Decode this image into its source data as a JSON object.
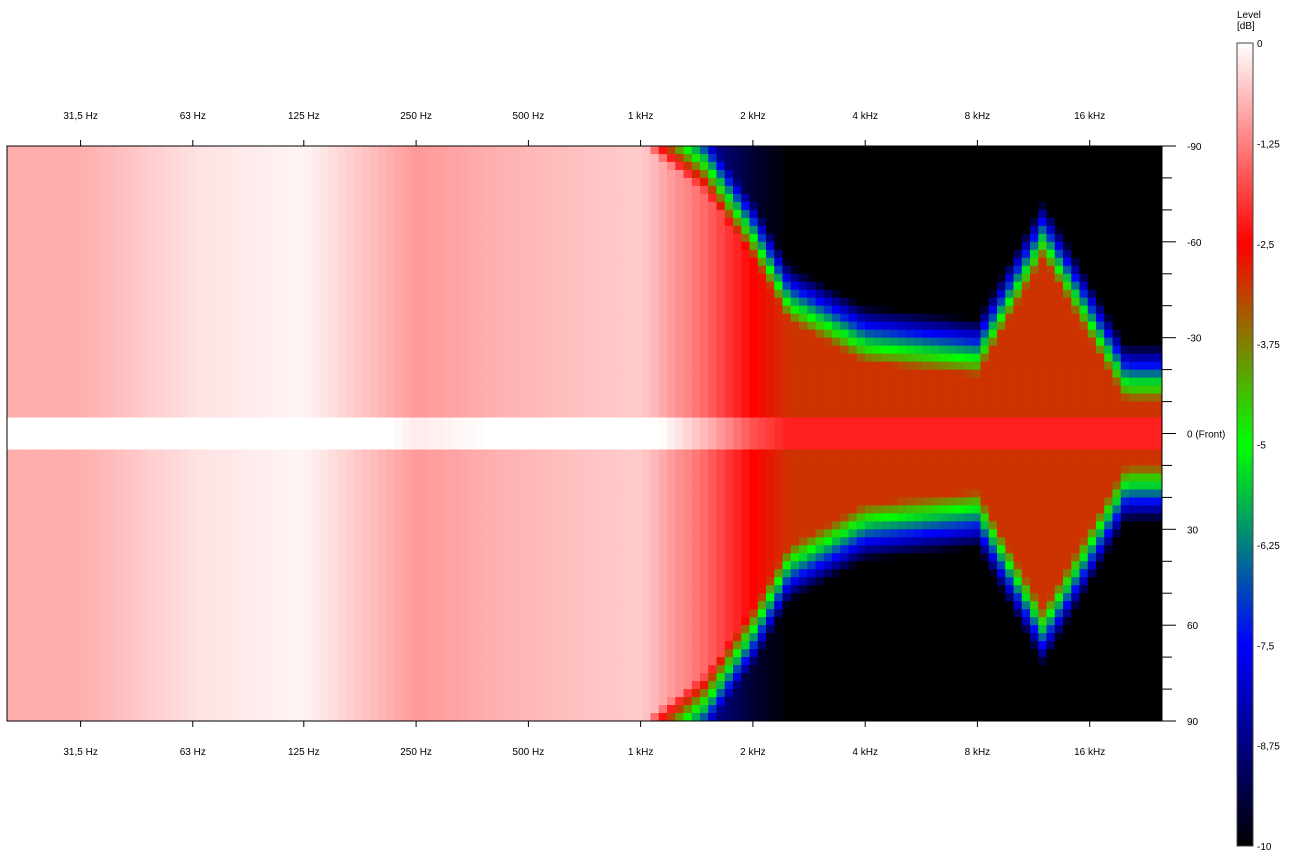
{
  "chart_data": {
    "type": "heatmap",
    "x_scale": "log",
    "x_tick_labels": [
      "31,5 Hz",
      "63 Hz",
      "125 Hz",
      "250 Hz",
      "500 Hz",
      "1 kHz",
      "2 kHz",
      "4 kHz",
      "8 kHz",
      "16 kHz"
    ],
    "x_tick_values_hz": [
      31.5,
      63,
      125,
      250,
      500,
      1000,
      2000,
      4000,
      8000,
      16000
    ],
    "xlim_hz": [
      20,
      25000
    ],
    "y_tick_labels": [
      "-90",
      "-60",
      "-30",
      "0 (Front)",
      "30",
      "60",
      "90"
    ],
    "y_tick_values_deg": [
      -90,
      -60,
      -30,
      0,
      30,
      60,
      90
    ],
    "ylim_deg": [
      -90,
      90
    ],
    "colorbar": {
      "title": "Level\n[dB]",
      "tick_labels": [
        "0",
        "-1,25",
        "-2,5",
        "-3,75",
        "-5",
        "-6,25",
        "-7,5",
        "-8,75",
        "-10"
      ],
      "tick_values_db": [
        0,
        -1.25,
        -2.5,
        -3.75,
        -5,
        -6.25,
        -7.5,
        -8.75,
        -10
      ],
      "range_db": [
        -10,
        0
      ],
      "color_stops": [
        {
          "db": 0,
          "color": "#ffffff"
        },
        {
          "db": -1.25,
          "color": "#ff8080"
        },
        {
          "db": -2.5,
          "color": "#ff0000"
        },
        {
          "db": -3.75,
          "color": "#808000"
        },
        {
          "db": -5,
          "color": "#00ff00"
        },
        {
          "db": -6.25,
          "color": "#008080"
        },
        {
          "db": -7.5,
          "color": "#0000ff"
        },
        {
          "db": -8.75,
          "color": "#000080"
        },
        {
          "db": -10,
          "color": "#000000"
        }
      ]
    },
    "beam_edge_by_band": [
      {
        "freq_hz": 31.5,
        "edge_deg": 90,
        "level_db": -0.8
      },
      {
        "freq_hz": 63,
        "edge_deg": 90,
        "level_db": -0.3
      },
      {
        "freq_hz": 125,
        "edge_deg": 90,
        "level_db": -0.1
      },
      {
        "freq_hz": 250,
        "edge_deg": 90,
        "level_db": -1.0
      },
      {
        "freq_hz": 500,
        "edge_deg": 90,
        "level_db": -0.7
      },
      {
        "freq_hz": 1000,
        "edge_deg": 90,
        "level_db": -0.5
      },
      {
        "freq_hz": 1500,
        "edge_deg": 75,
        "level_db": -1.5
      },
      {
        "freq_hz": 2000,
        "edge_deg": 55,
        "level_db": -2.5
      },
      {
        "freq_hz": 2500,
        "edge_deg": 35,
        "level_db": -3.0
      },
      {
        "freq_hz": 4000,
        "edge_deg": 22,
        "level_db": -3.0
      },
      {
        "freq_hz": 8000,
        "edge_deg": 18,
        "level_db": -3.0
      },
      {
        "freq_hz": 12000,
        "edge_deg": 55,
        "level_db": -3.0
      },
      {
        "freq_hz": 20000,
        "edge_deg": 10,
        "level_db": -3.0
      }
    ]
  }
}
